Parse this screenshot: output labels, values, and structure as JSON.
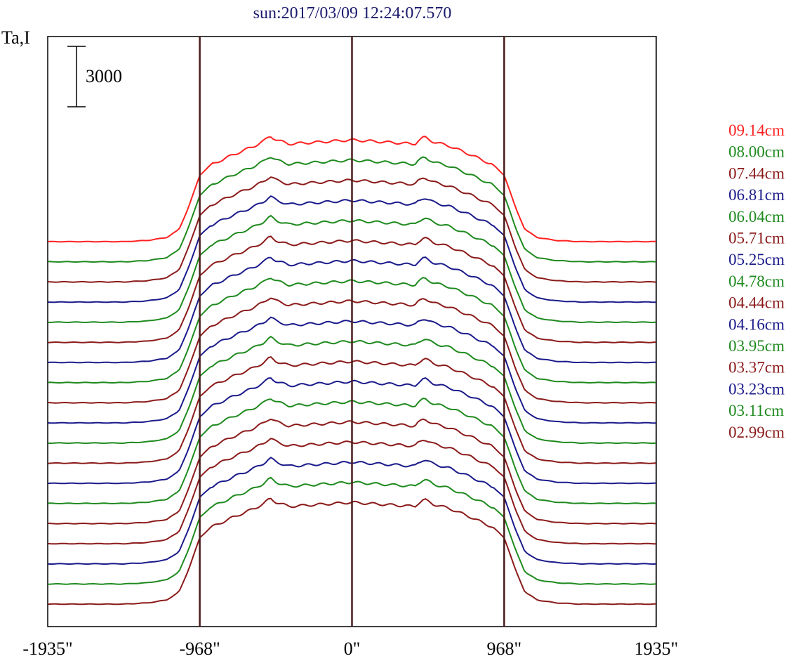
{
  "chart_data": {
    "type": "line",
    "title": "sun:2017/03/09 12:24:07.570",
    "ylabel": "Ta,I",
    "xlabel": "",
    "xlim": [
      -1935,
      1935
    ],
    "x_ticks": [
      {
        "value": -1935,
        "label": "-1935\""
      },
      {
        "value": -968,
        "label": "-968\""
      },
      {
        "value": 0,
        "label": "0\""
      },
      {
        "value": 968,
        "label": "968\""
      },
      {
        "value": 1935,
        "label": "1935\""
      }
    ],
    "vertical_lines": [
      -968,
      0,
      968
    ],
    "scale_bar": {
      "label": "3000",
      "value": 3000
    },
    "series_offset": 1000,
    "profile_points": [
      [
        -1935,
        0
      ],
      [
        -1450,
        0
      ],
      [
        -1300,
        60
      ],
      [
        -1180,
        200
      ],
      [
        -1100,
        600
      ],
      [
        -1040,
        1700
      ],
      [
        -990,
        2800
      ],
      [
        -968,
        3300
      ],
      [
        -900,
        3800
      ],
      [
        -760,
        4300
      ],
      [
        -620,
        4750
      ],
      [
        -560,
        5000
      ],
      [
        -520,
        5250
      ],
      [
        -480,
        5050
      ],
      [
        -400,
        4850
      ],
      [
        -200,
        4950
      ],
      [
        0,
        5050
      ],
      [
        200,
        4950
      ],
      [
        400,
        4850
      ],
      [
        420,
        5000
      ],
      [
        460,
        5200
      ],
      [
        520,
        4950
      ],
      [
        620,
        4750
      ],
      [
        760,
        4300
      ],
      [
        900,
        3800
      ],
      [
        968,
        3300
      ],
      [
        1000,
        2600
      ],
      [
        1040,
        1700
      ],
      [
        1100,
        600
      ],
      [
        1180,
        200
      ],
      [
        1300,
        60
      ],
      [
        1450,
        0
      ],
      [
        1935,
        0
      ]
    ],
    "series": [
      {
        "name": "09.14cm",
        "color": "#ff2020"
      },
      {
        "name": "08.00cm",
        "color": "#1e8a1e"
      },
      {
        "name": "07.44cm",
        "color": "#8b1a1a"
      },
      {
        "name": "06.81cm",
        "color": "#1a1a8b"
      },
      {
        "name": "06.04cm",
        "color": "#1e8a1e"
      },
      {
        "name": "05.71cm",
        "color": "#8b1a1a"
      },
      {
        "name": "05.25cm",
        "color": "#1a1a8b"
      },
      {
        "name": "04.78cm",
        "color": "#1e8a1e"
      },
      {
        "name": "04.44cm",
        "color": "#8b1a1a"
      },
      {
        "name": "04.16cm",
        "color": "#1a1a8b"
      },
      {
        "name": "03.95cm",
        "color": "#1e8a1e"
      },
      {
        "name": "03.37cm",
        "color": "#8b1a1a"
      },
      {
        "name": "03.23cm",
        "color": "#1a1a8b"
      },
      {
        "name": "03.11cm",
        "color": "#1e8a1e"
      },
      {
        "name": "02.99cm",
        "color": "#8b1a1a"
      },
      {
        "name": "",
        "color": "#8b1a1a"
      },
      {
        "name": "",
        "color": "#1a1a8b"
      },
      {
        "name": "",
        "color": "#1e8a1e"
      },
      {
        "name": "",
        "color": "#8b1a1a"
      }
    ],
    "legend": "right",
    "grid": false
  }
}
